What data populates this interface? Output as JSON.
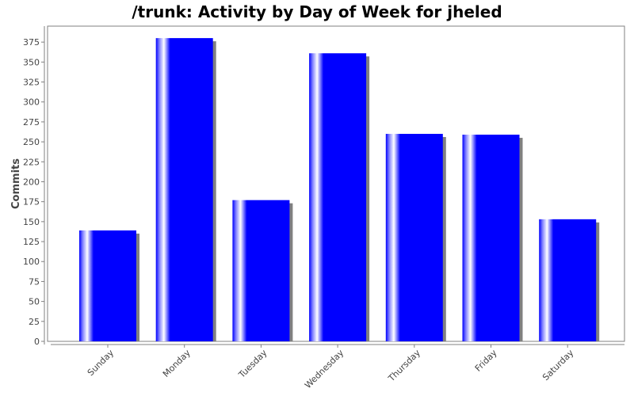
{
  "chart_data": {
    "type": "bar",
    "title": "/trunk: Activity by Day of Week for jheled",
    "xlabel": "",
    "ylabel": "Commits",
    "categories": [
      "Sunday",
      "Monday",
      "Tuesday",
      "Wednesday",
      "Thursday",
      "Friday",
      "Saturday"
    ],
    "values": [
      139,
      380,
      177,
      361,
      260,
      259,
      153
    ],
    "ylim": [
      0,
      395
    ],
    "yticks": [
      0,
      25,
      50,
      75,
      100,
      125,
      150,
      175,
      200,
      225,
      250,
      275,
      300,
      325,
      350,
      375
    ],
    "grid": false,
    "legend": "none",
    "colors": {
      "bar": "#0000ff",
      "bar_highlight": "#ffffff",
      "shadow": "#808080",
      "axis": "#808080",
      "plot_border": "#808080",
      "title": "#000000",
      "text": "#444444"
    }
  }
}
